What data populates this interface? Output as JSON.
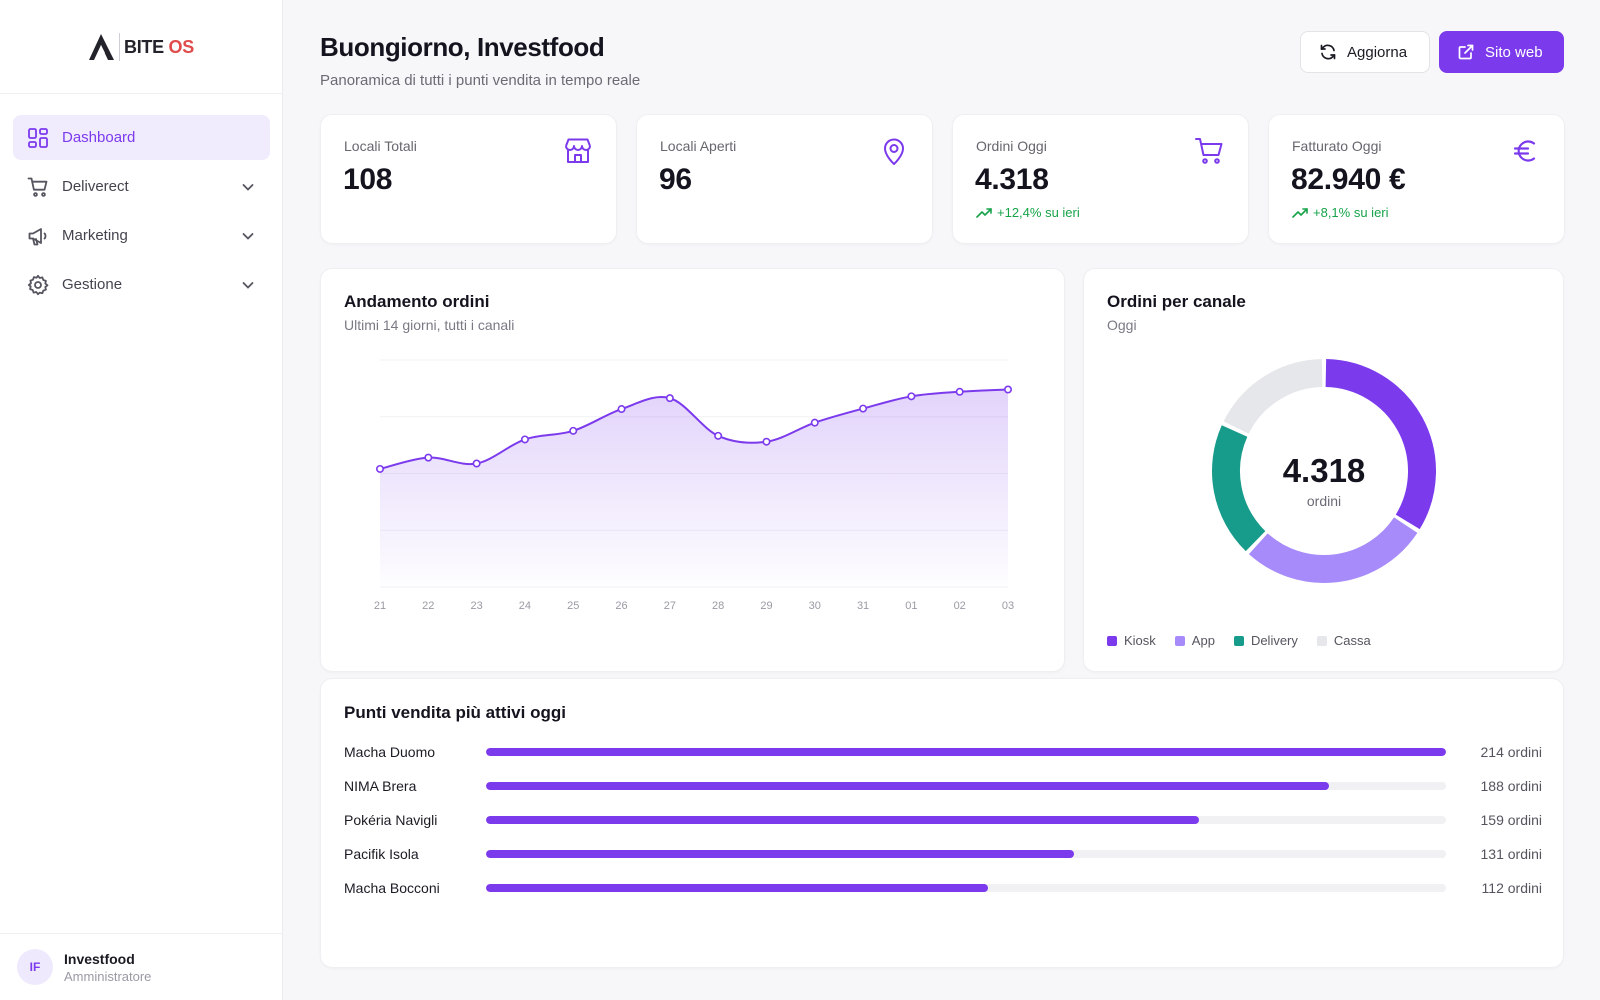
{
  "brand": {
    "name_a": "BITE",
    "name_b": "OS"
  },
  "sidebar": {
    "items": [
      {
        "label": "Dashboard",
        "icon": "dashboard-grid-icon",
        "active": true
      },
      {
        "label": "Deliverect",
        "icon": "cart-icon",
        "expandable": true
      },
      {
        "label": "Marketing",
        "icon": "megaphone-icon",
        "expandable": true
      },
      {
        "label": "Gestione",
        "icon": "gear-icon",
        "expandable": true
      }
    ]
  },
  "user": {
    "initials": "IF",
    "name": "Investfood",
    "role": "Amministratore"
  },
  "header": {
    "title": "Buongiorno, Investfood",
    "subtitle": "Panoramica di tutti i punti vendita in tempo reale",
    "refresh_label": "Aggiorna",
    "website_label": "Sito web"
  },
  "kpis": [
    {
      "label": "Locali Totali",
      "value": "108",
      "icon": "store-icon"
    },
    {
      "label": "Locali Aperti",
      "value": "96",
      "icon": "map-pin-icon"
    },
    {
      "label": "Ordini Oggi",
      "value": "4.318",
      "icon": "cart-icon",
      "trend": "+12,4% su ieri"
    },
    {
      "label": "Fatturato Oggi",
      "value": "82.940 €",
      "icon": "euro-icon",
      "trend": "+8,1% su ieri"
    }
  ],
  "orders_trend": {
    "title": "Andamento ordini",
    "subtitle": "Ultimi 14 giorni, tutti i canali"
  },
  "channels": {
    "title": "Ordini per canale",
    "subtitle": "Oggi",
    "center_value": "4.318",
    "center_label": "ordini"
  },
  "top_stores": {
    "title": "Punti vendita più attivi oggi",
    "rows": [
      {
        "name": "Macha Duomo",
        "orders": 214,
        "label": "214 ordini"
      },
      {
        "name": "NIMA Brera",
        "orders": 188,
        "label": "188 ordini"
      },
      {
        "name": "Pokéria Navigli",
        "orders": 159,
        "label": "159 ordini"
      },
      {
        "name": "Pacifik Isola",
        "orders": 131,
        "label": "131 ordini"
      },
      {
        "name": "Macha Bocconi",
        "orders": 112,
        "label": "112 ordini"
      }
    ]
  },
  "colors": {
    "accent": "#7c3aed",
    "accent_light": "#a78bfa",
    "teal": "#179b8a",
    "neutral": "#e5e7eb",
    "positive": "#16a34a"
  },
  "chart_data": [
    {
      "type": "area",
      "title": "Andamento ordini",
      "subtitle": "Ultimi 14 giorni, tutti i canali",
      "categories": [
        "21",
        "22",
        "23",
        "24",
        "25",
        "26",
        "27",
        "28",
        "29",
        "30",
        "31",
        "01",
        "02",
        "03"
      ],
      "series": [
        {
          "values": [
            2600,
            2850,
            2720,
            3250,
            3440,
            3920,
            4160,
            3330,
            3200,
            3620,
            3930,
            4200,
            4300,
            4350
          ]
        }
      ],
      "ylim": [
        0,
        5000
      ],
      "grid": true
    },
    {
      "type": "pie",
      "title": "Ordini per canale",
      "subtitle": "Oggi",
      "categories": [
        "Kiosk",
        "App",
        "Delivery",
        "Cassa"
      ],
      "values": [
        34,
        28,
        20,
        18
      ],
      "colors": [
        "#7c3aed",
        "#a78bfa",
        "#179b8a",
        "#e5e7eb"
      ],
      "center_text": "4.318 ordini"
    }
  ]
}
